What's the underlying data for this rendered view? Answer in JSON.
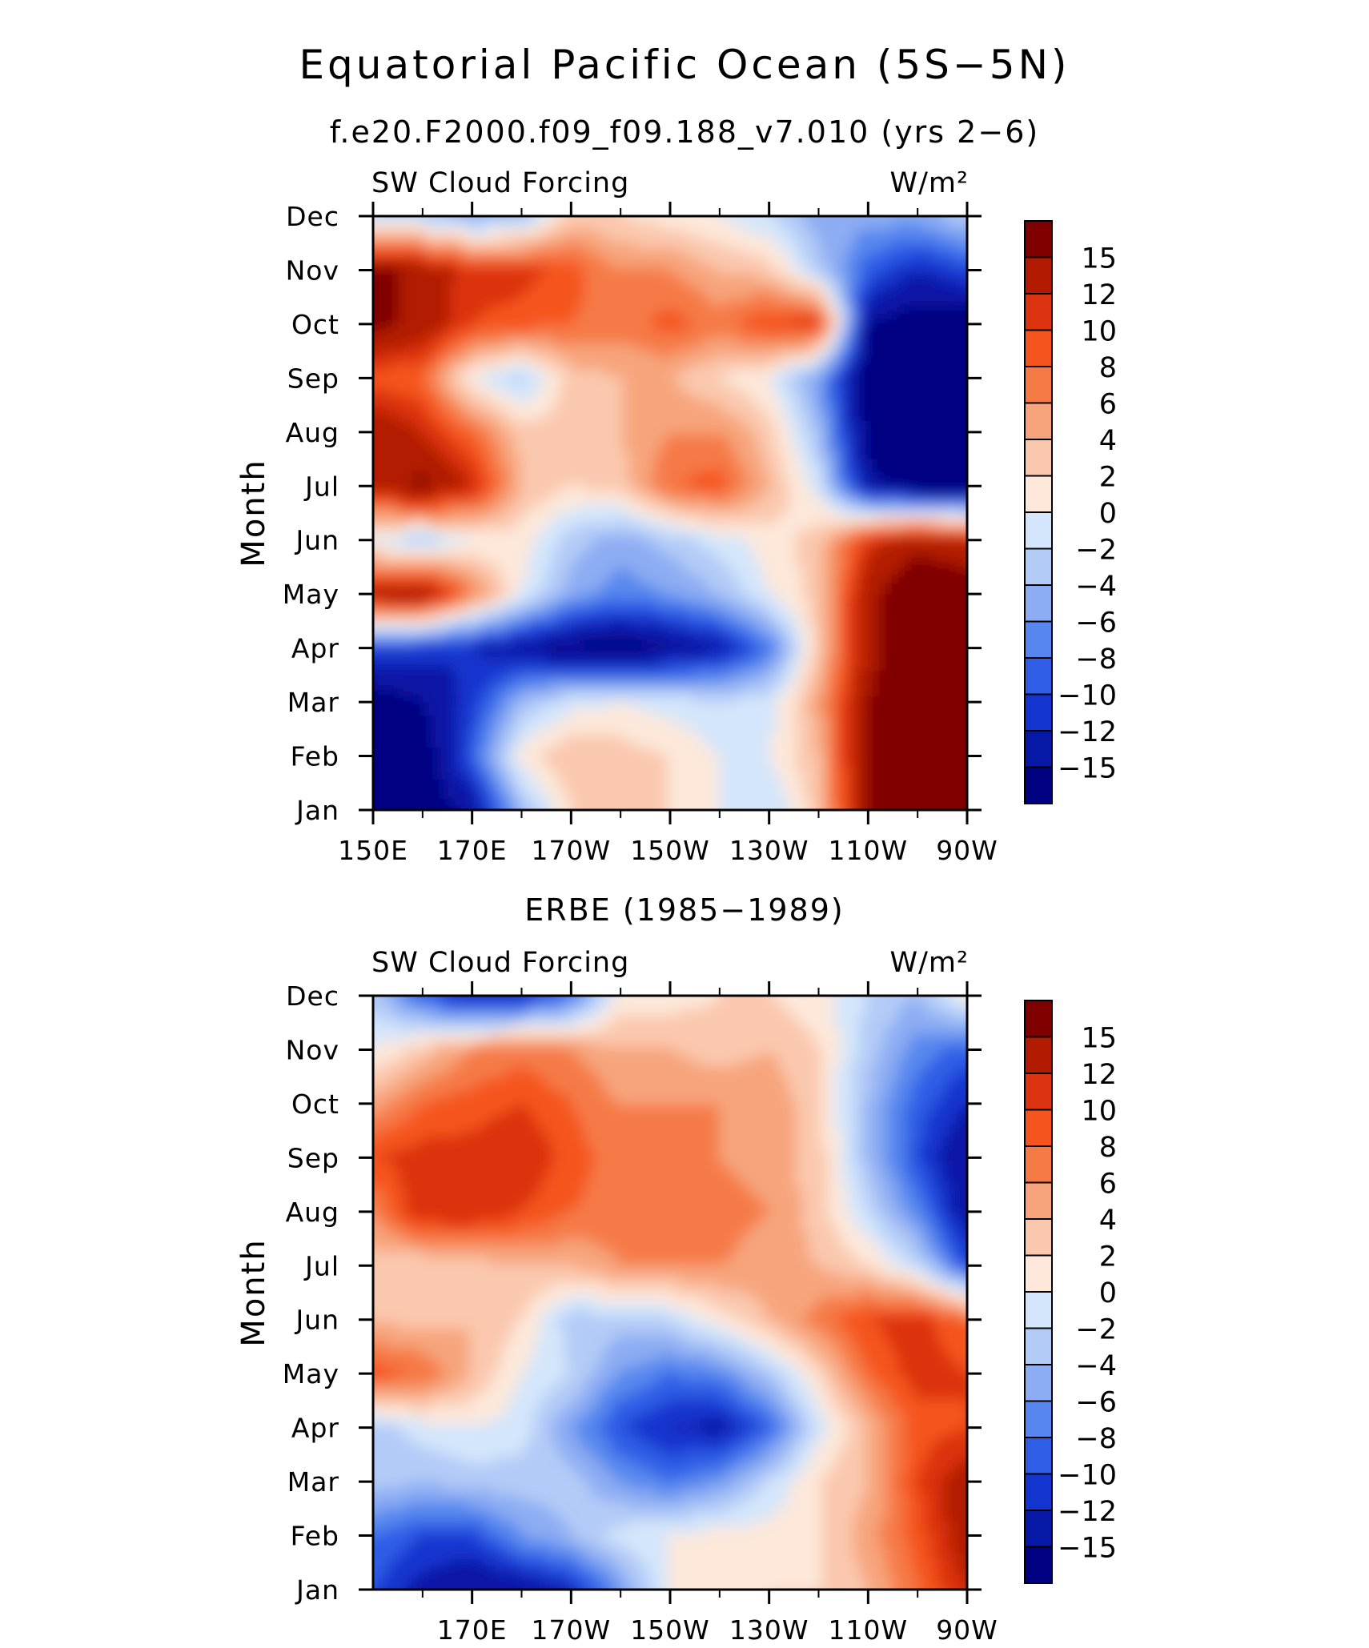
{
  "title": "Equatorial Pacific Ocean (5S−5N)",
  "colorbar": {
    "labels": [
      "15",
      "12",
      "10",
      "8",
      "6",
      "4",
      "2",
      "0",
      "−2",
      "−4",
      "−6",
      "−8",
      "−10",
      "−12",
      "−15"
    ],
    "colors": [
      "#800000",
      "#b21b00",
      "#dc3310",
      "#f5541e",
      "#f57a46",
      "#f7a47c",
      "#fac8ae",
      "#fde8da",
      "#d4e6fb",
      "#b2cbf7",
      "#8cacf3",
      "#5787ee",
      "#2f5de6",
      "#1434cf",
      "#0818a6",
      "#000080"
    ]
  },
  "chart_data": [
    {
      "type": "heatmap",
      "subtitle": "f.e20.F2000.f09_f09.188_v7.010 (yrs 2−6)",
      "left_label": "SW Cloud Forcing",
      "right_label": "W/m²",
      "ylabel": "Month",
      "x_ticks": [
        "150E",
        "170E",
        "170W",
        "150W",
        "130W",
        "110W",
        "90W"
      ],
      "x_range": [
        150,
        270
      ],
      "y_ticks": [
        "Jan",
        "Feb",
        "Mar",
        "Apr",
        "May",
        "Jun",
        "Jul",
        "Aug",
        "Sep",
        "Oct",
        "Nov",
        "Dec"
      ],
      "color_levels": [
        -15,
        -12,
        -10,
        -8,
        -6,
        -4,
        -2,
        0,
        2,
        4,
        6,
        8,
        10,
        12,
        15
      ],
      "lon": [
        150,
        160,
        170,
        180,
        190,
        200,
        210,
        220,
        230,
        240,
        250,
        260,
        270
      ],
      "values": [
        [
          -17,
          -17,
          -14,
          -4,
          2,
          3,
          2,
          0,
          -2,
          3,
          16,
          18,
          18
        ],
        [
          -17,
          -17,
          -9,
          1,
          4,
          3,
          2,
          0,
          0,
          4,
          16,
          18,
          18
        ],
        [
          -17,
          -15,
          -11,
          -4,
          -1,
          0,
          -1,
          -2,
          -1,
          5,
          15,
          18,
          18
        ],
        [
          -10,
          -11,
          -12,
          -14,
          -16,
          -17,
          -15,
          -13,
          -8,
          3,
          14,
          18,
          18
        ],
        [
          14,
          15,
          7,
          0,
          -5,
          -7,
          -6,
          -4,
          0,
          3,
          14,
          18,
          18
        ],
        [
          -1,
          -3,
          0,
          1,
          -3,
          -5,
          -3,
          -1,
          1,
          3,
          11,
          14,
          12
        ],
        [
          13,
          16,
          12,
          4,
          2,
          3,
          8,
          9,
          4,
          -1,
          -14,
          -17,
          -17
        ],
        [
          15,
          12,
          8,
          3,
          3,
          4,
          6,
          6,
          3,
          -4,
          -16,
          -17,
          -17
        ],
        [
          9,
          8,
          0,
          -3,
          3,
          4,
          4,
          2,
          0,
          -6,
          -17,
          -17,
          -17
        ],
        [
          16,
          14,
          10,
          9,
          8,
          7,
          9,
          7,
          10,
          11,
          -15,
          -17,
          -17
        ],
        [
          16,
          14,
          11,
          11,
          9,
          6,
          6,
          4,
          3,
          -3,
          -9,
          -12,
          -10
        ],
        [
          -2,
          -3,
          -5,
          -4,
          3,
          2,
          1,
          0,
          -2,
          -5,
          -5,
          -5,
          -3
        ]
      ]
    },
    {
      "type": "heatmap",
      "subtitle": "ERBE (1985−1989)",
      "left_label": "SW Cloud Forcing",
      "right_label": "W/m²",
      "ylabel": "Month",
      "x_ticks": [
        "170E",
        "170W",
        "150W",
        "130W",
        "110W",
        "90W"
      ],
      "x_range": [
        150,
        270
      ],
      "y_ticks": [
        "Jan",
        "Feb",
        "Mar",
        "Apr",
        "May",
        "Jun",
        "Jul",
        "Aug",
        "Sep",
        "Oct",
        "Nov",
        "Dec"
      ],
      "color_levels": [
        -15,
        -12,
        -10,
        -8,
        -6,
        -4,
        -2,
        0,
        2,
        4,
        6,
        8,
        10,
        12,
        15
      ],
      "lon": [
        150,
        160,
        170,
        180,
        190,
        200,
        210,
        220,
        230,
        240,
        250,
        260,
        270
      ],
      "values": [
        [
          -10,
          -13,
          -15,
          -14,
          -12,
          -6,
          0,
          1,
          2,
          2,
          4,
          8,
          12
        ],
        [
          -8,
          -10,
          -10,
          -6,
          -4,
          -1,
          0,
          1,
          1,
          2,
          5,
          9,
          14
        ],
        [
          -3,
          -4,
          -3,
          -3,
          -3,
          -6,
          -8,
          -6,
          -2,
          2,
          4,
          10,
          14
        ],
        [
          -3,
          -1,
          0,
          -1,
          -6,
          -10,
          -12,
          -13,
          -9,
          -1,
          4,
          9,
          10
        ],
        [
          9,
          8,
          4,
          0,
          -2,
          -6,
          -8,
          -7,
          -3,
          2,
          8,
          11,
          10
        ],
        [
          4,
          3,
          4,
          2,
          -3,
          -3,
          -2,
          1,
          4,
          7,
          10,
          11,
          8
        ],
        [
          3,
          2,
          3,
          4,
          4,
          6,
          6,
          6,
          5,
          4,
          2,
          -2,
          -10
        ],
        [
          6,
          12,
          12,
          10,
          8,
          7,
          7,
          7,
          6,
          3,
          -2,
          -7,
          -14
        ],
        [
          10,
          11,
          11,
          12,
          9,
          7,
          6,
          6,
          5,
          3,
          -4,
          -10,
          -15
        ],
        [
          5,
          8,
          9,
          10,
          8,
          6,
          6,
          6,
          6,
          2,
          -4,
          -9,
          -12
        ],
        [
          0,
          3,
          6,
          7,
          6,
          4,
          4,
          3,
          4,
          2,
          -3,
          -7,
          -9
        ],
        [
          -3,
          -9,
          -13,
          -12,
          -8,
          1,
          1,
          2,
          2,
          1,
          -2,
          -4,
          1
        ]
      ]
    }
  ]
}
